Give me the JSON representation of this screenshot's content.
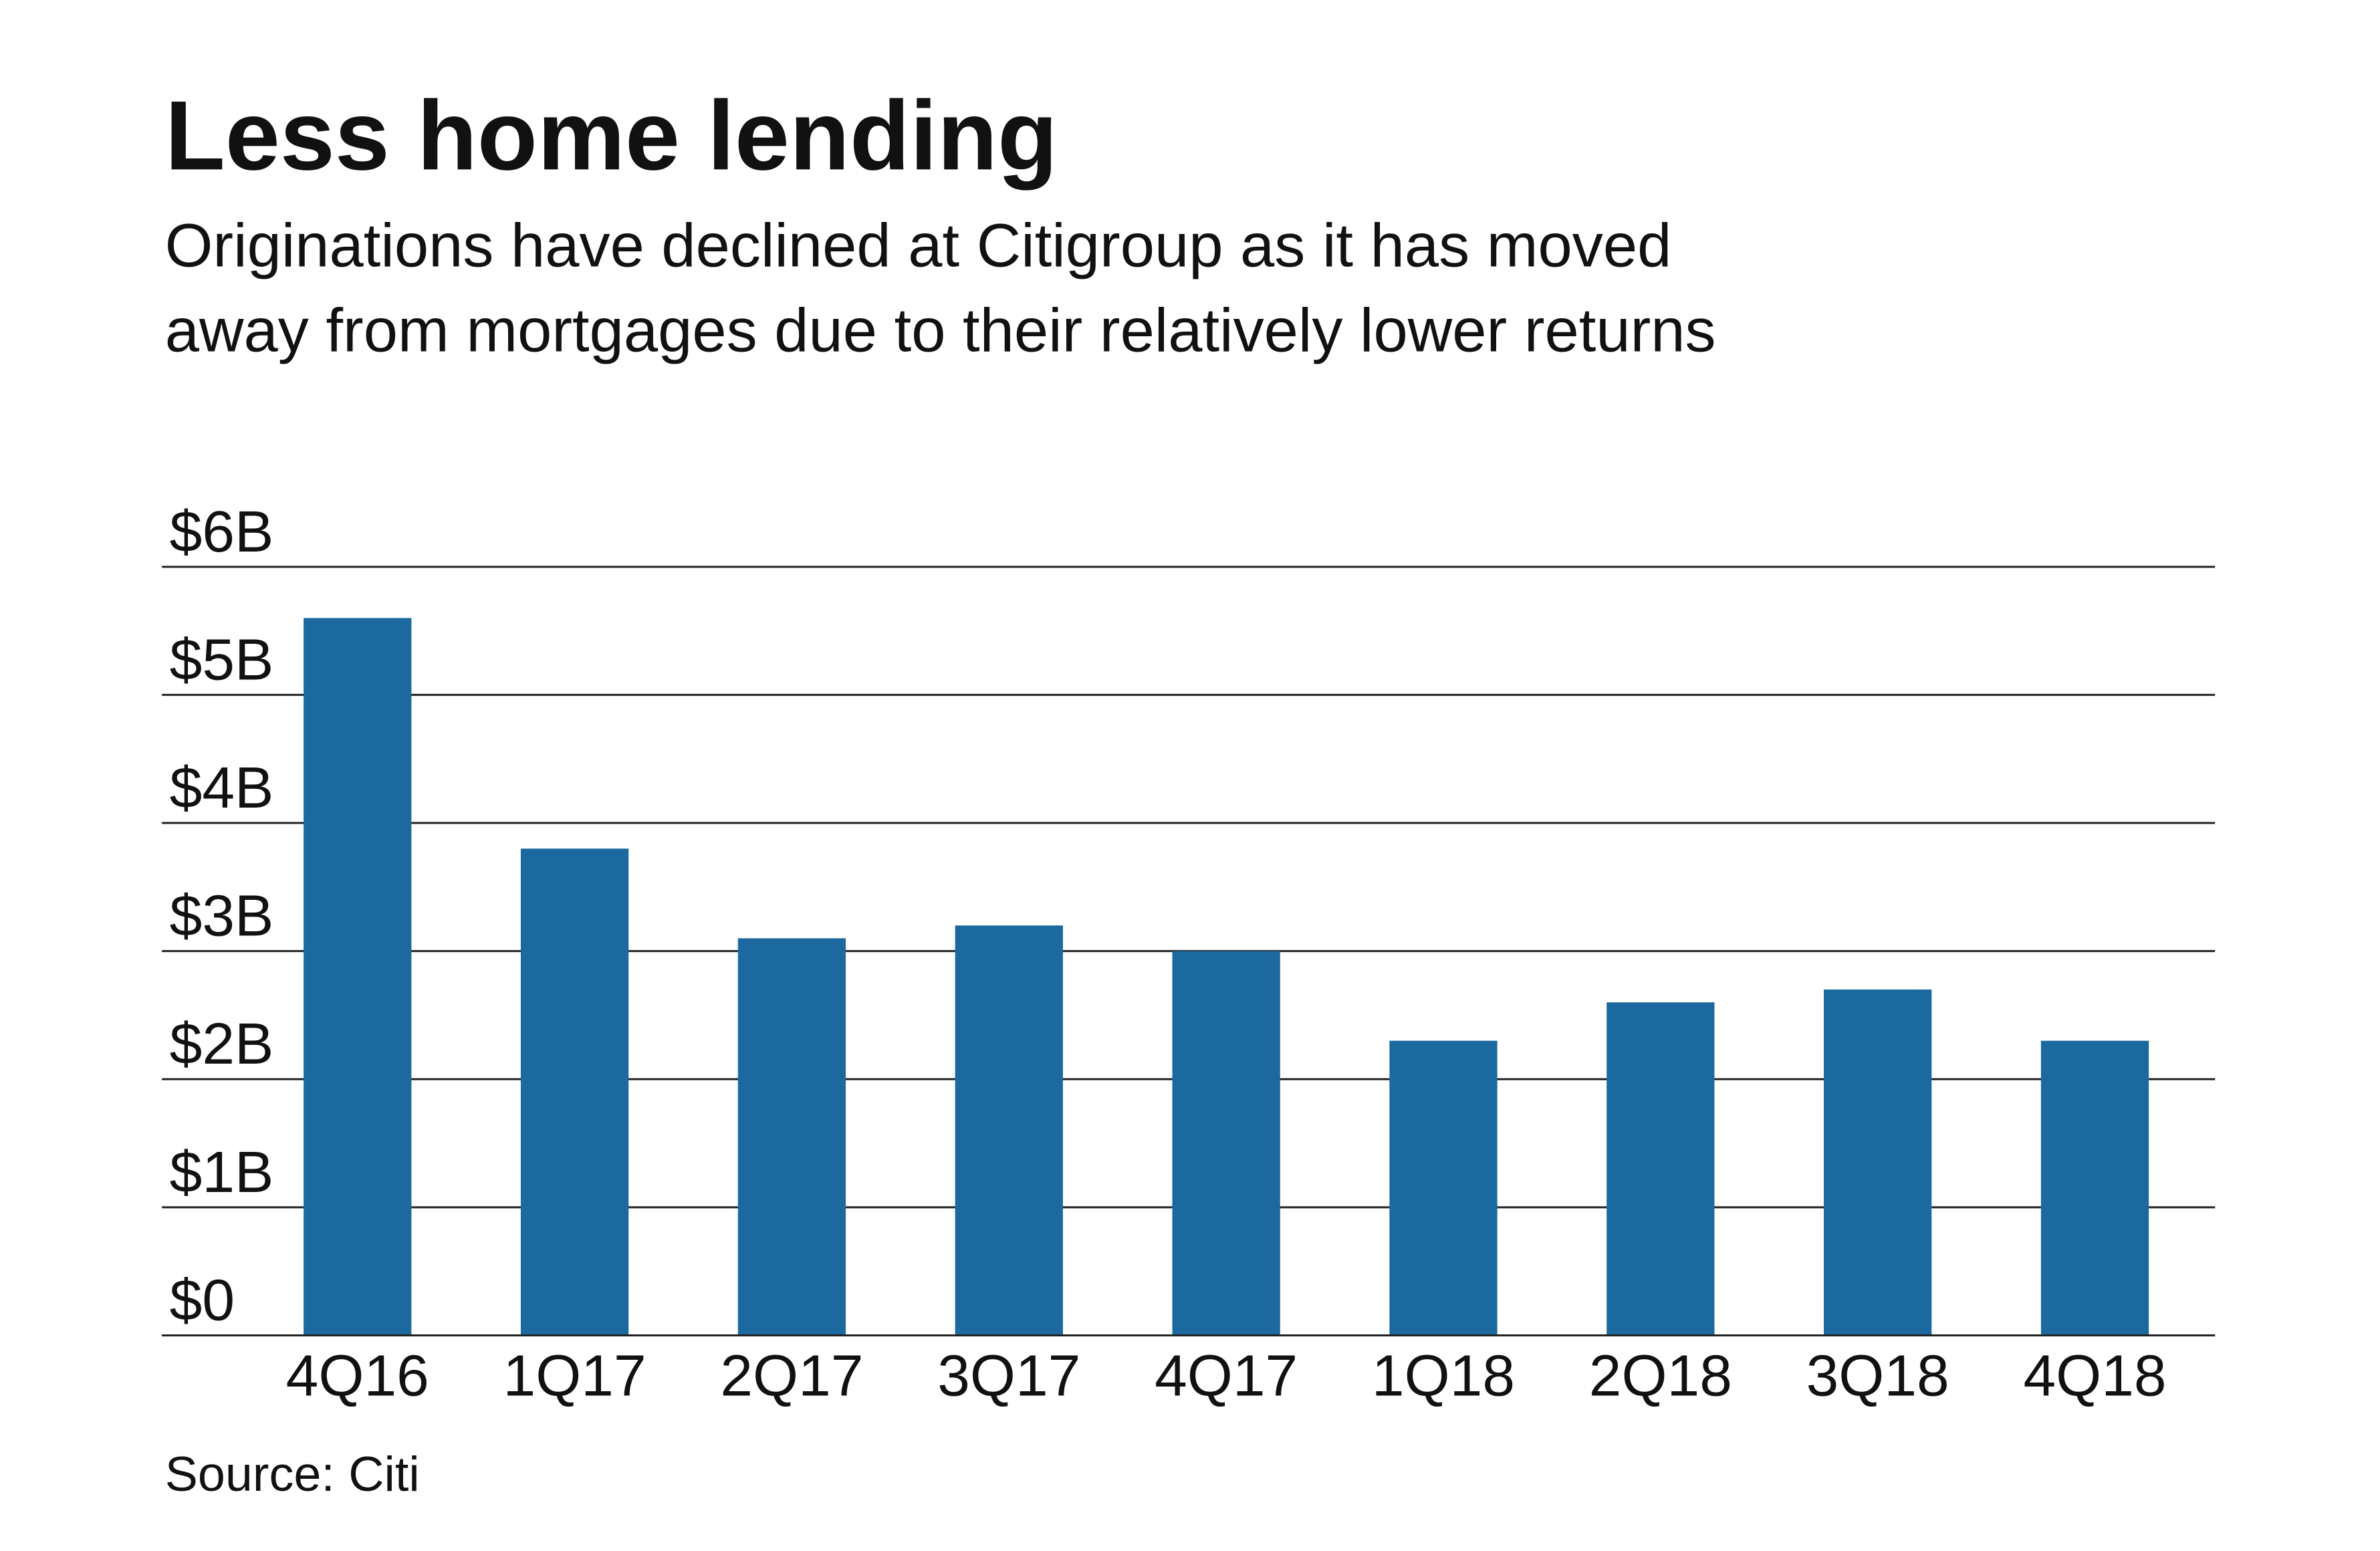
{
  "title": "Less home lending",
  "subtitle_lines": [
    "Originations have declined at Citigroup as it has moved",
    "away from mortgages due to their relatively lower returns"
  ],
  "source": "Source: Citi",
  "colors": {
    "bar": "#1b699f",
    "text": "#111111",
    "grid": "#222222"
  },
  "chart_data": {
    "type": "bar",
    "categories": [
      "4Q16",
      "1Q17",
      "2Q17",
      "3Q17",
      "4Q17",
      "1Q18",
      "2Q18",
      "3Q18",
      "4Q18"
    ],
    "values": [
      5.6,
      3.8,
      3.1,
      3.2,
      3.0,
      2.3,
      2.6,
      2.7,
      2.3
    ],
    "unit": "billions of dollars",
    "ylim": [
      0,
      6
    ],
    "yticks": [
      0,
      1,
      2,
      3,
      4,
      5,
      6
    ],
    "ytick_labels": [
      "$0",
      "$1B",
      "$2B",
      "$3B",
      "$4B",
      "$5B",
      "$6B"
    ],
    "grid": true
  }
}
